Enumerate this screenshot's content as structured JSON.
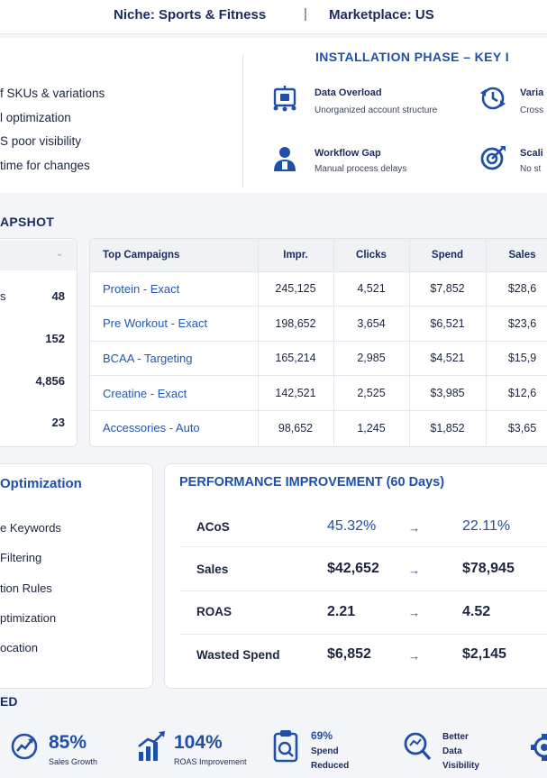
{
  "header": {
    "niche": "Niche: Sports & Fitness",
    "separator": "|",
    "marketplace": "Marketplace: US"
  },
  "challenges": [
    "f SKUs & variations",
    "l optimization",
    "S poor visibility",
    "time for changes"
  ],
  "installation": {
    "title": "INSTALLATION PHASE – KEY I",
    "issues": [
      {
        "title": "Data Overload",
        "subtitle": "Unorganized account structure",
        "icon": "data-overload-icon"
      },
      {
        "title": "Varia",
        "subtitle": "Cross",
        "icon": "variation-clock-icon"
      },
      {
        "title": "Workflow Gap",
        "subtitle": "Manual process delays",
        "icon": "user-icon"
      },
      {
        "title": "Scali",
        "subtitle": "No st",
        "icon": "scaling-target-icon"
      }
    ]
  },
  "snapshot": {
    "label": "APSHOT",
    "chevron": "⌄",
    "rows": [
      {
        "label": "s",
        "value": "48"
      },
      {
        "label": "",
        "value": "152"
      },
      {
        "label": "",
        "value": "4,856"
      },
      {
        "label": "",
        "value": "23"
      }
    ]
  },
  "campaigns": {
    "headers": [
      "Top Campaigns",
      "Impr.",
      "Clicks",
      "Spend",
      "Sales"
    ],
    "rows": [
      [
        "Protein - Exact",
        "245,125",
        "4,521",
        "$7,852",
        "$28,6"
      ],
      [
        "Pre Workout - Exact",
        "198,652",
        "3,654",
        "$6,521",
        "$23,6"
      ],
      [
        "BCAA - Targeting",
        "165,214",
        "2,985",
        "$4,521",
        "$15,9"
      ],
      [
        "Creatine - Exact",
        "142,521",
        "2,525",
        "$3,985",
        "$12,6"
      ],
      [
        "Accessories - Auto",
        "98,652",
        "1,245",
        "$1,852",
        "$3,65"
      ]
    ]
  },
  "optimization": {
    "title": "Optimization",
    "items": [
      "e Keywords",
      "Filtering",
      "tion Rules",
      "ptimization",
      "ocation"
    ]
  },
  "performance": {
    "title": "PERFORMANCE IMPROVEMENT (60 Days)",
    "arrow": "→",
    "rows": [
      {
        "metric": "ACoS",
        "before": "45.32%",
        "after": "22.11%",
        "highlight": true
      },
      {
        "metric": "Sales",
        "before": "$42,652",
        "after": "$78,945",
        "highlight": false
      },
      {
        "metric": "ROAS",
        "before": "2.21",
        "after": "4.52",
        "highlight": false
      },
      {
        "metric": "Wasted Spend",
        "before": "$6,852",
        "after": "$2,145",
        "highlight": false
      }
    ]
  },
  "results": {
    "label": "ED",
    "stats": [
      {
        "big": "85%",
        "small": "Sales Growth",
        "icon": "sales-growth-icon"
      },
      {
        "big": "104%",
        "small": "ROAS Improvement",
        "icon": "roas-chart-icon"
      },
      {
        "big": "69%",
        "lines": [
          "Spend",
          "Reduced"
        ],
        "icon": "spend-clipboard-icon"
      },
      {
        "lines": [
          "Better",
          "Data",
          "Visibility"
        ],
        "icon": "data-search-icon"
      }
    ]
  },
  "colors": {
    "navy": "#1a2b5e",
    "accent_blue": "#1f4fa8",
    "link_blue": "#2457b0",
    "card_border": "#dfe3ea",
    "page_bg": "#f3f5f9"
  }
}
